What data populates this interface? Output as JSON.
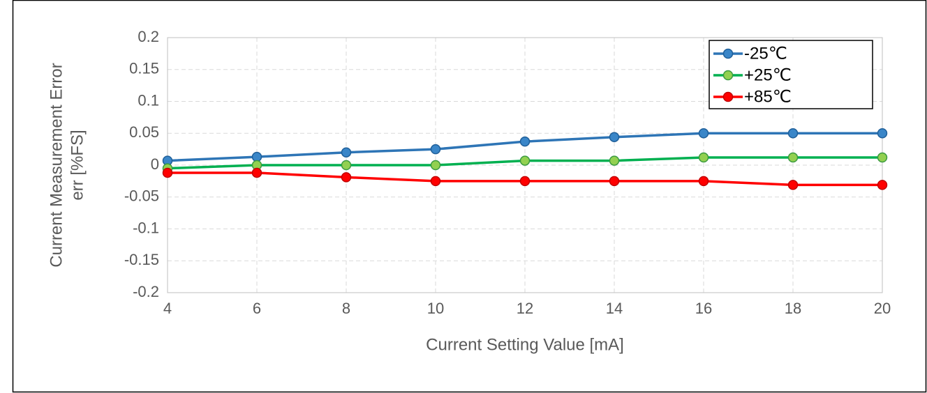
{
  "chart_data": {
    "type": "line",
    "xlabel": "Current Setting Value [mA]",
    "ylabel": [
      "Current Measurement Error",
      "err [%FS]"
    ],
    "x": [
      4,
      6,
      8,
      10,
      12,
      14,
      16,
      18,
      20
    ],
    "xlim": [
      4,
      20
    ],
    "xticks": [
      4,
      6,
      8,
      10,
      12,
      14,
      16,
      18,
      20
    ],
    "ylim": [
      -0.2,
      0.2
    ],
    "yticks": [
      0.2,
      0.15,
      0.1,
      0.05,
      0,
      -0.05,
      -0.1,
      -0.15,
      -0.2
    ],
    "grid": true,
    "legend": "upper right",
    "series": [
      {
        "name": "-25℃",
        "color": "#2e75b6",
        "marker_fill": "#3a86c8",
        "marker_stroke": "#1f5f99",
        "values": [
          0.007,
          0.013,
          0.02,
          0.025,
          0.037,
          0.044,
          0.05,
          0.05,
          0.05
        ]
      },
      {
        "name": "+25℃",
        "color": "#00b050",
        "marker_fill": "#92d050",
        "marker_stroke": "#3a9a40",
        "values": [
          -0.005,
          0,
          0,
          0,
          0.007,
          0.007,
          0.012,
          0.012,
          0.012
        ]
      },
      {
        "name": "+85℃",
        "color": "#ff0000",
        "marker_fill": "#ff0000",
        "marker_stroke": "#c00000",
        "values": [
          -0.012,
          -0.012,
          -0.019,
          -0.025,
          -0.025,
          -0.025,
          -0.025,
          -0.031,
          -0.031
        ]
      }
    ]
  }
}
